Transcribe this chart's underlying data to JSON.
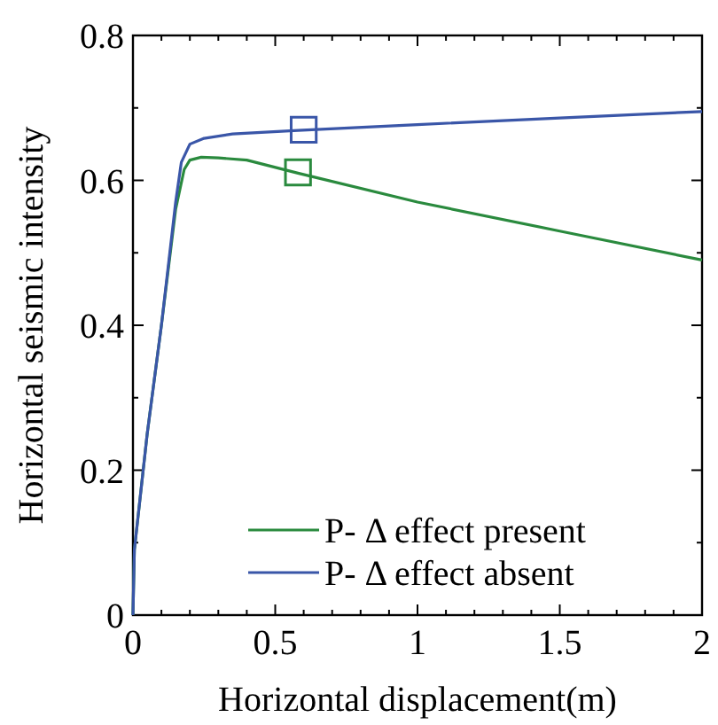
{
  "chart_data": {
    "type": "line",
    "xlabel": "Horizontal displacement(m)",
    "ylabel": "Horizontal seismic intensity",
    "xlim": [
      0,
      2
    ],
    "ylim": [
      0,
      0.8
    ],
    "xticks": [
      0,
      {
        "value": 0.1,
        "label": null
      },
      {
        "value": 0.2,
        "label": null
      },
      {
        "value": 0.3,
        "label": null
      },
      {
        "value": 0.4,
        "label": null
      },
      0.5,
      {
        "value": 0.6,
        "label": null
      },
      {
        "value": 0.7,
        "label": null
      },
      {
        "value": 0.8,
        "label": null
      },
      {
        "value": 0.9,
        "label": null
      },
      1,
      {
        "value": 1.1,
        "label": null
      },
      {
        "value": 1.2,
        "label": null
      },
      {
        "value": 1.3,
        "label": null
      },
      {
        "value": 1.4,
        "label": null
      },
      1.5,
      {
        "value": 1.6,
        "label": null
      },
      {
        "value": 1.7,
        "label": null
      },
      {
        "value": 1.8,
        "label": null
      },
      {
        "value": 1.9,
        "label": null
      },
      2
    ],
    "yticks": [
      0,
      {
        "value": 0.1,
        "label": null
      },
      0.2,
      {
        "value": 0.3,
        "label": null
      },
      0.4,
      {
        "value": 0.5,
        "label": null
      },
      0.6,
      {
        "value": 0.7,
        "label": null
      },
      0.8
    ],
    "grid": false,
    "legend": "bottom right",
    "line_style": "solid",
    "series": [
      {
        "name": "P- Δ effect present",
        "color": "#2a8a3e",
        "marker": "none",
        "x": [
          0,
          0.005,
          0.05,
          0.1,
          0.15,
          0.18,
          0.2,
          0.24,
          0.3,
          0.4,
          0.58,
          1,
          1.5,
          2
        ],
        "values": [
          0,
          0.09,
          0.25,
          0.4,
          0.56,
          0.615,
          0.628,
          0.632,
          0.631,
          0.628,
          0.61,
          0.57,
          0.53,
          0.49
        ]
      },
      {
        "name": "P- Δ effect absent",
        "color": "#3a56a8",
        "marker": "none",
        "x": [
          0,
          0.005,
          0.05,
          0.1,
          0.15,
          0.17,
          0.2,
          0.25,
          0.35,
          0.58,
          1,
          1.5,
          2
        ],
        "values": [
          0,
          0.09,
          0.25,
          0.4,
          0.57,
          0.625,
          0.65,
          0.658,
          0.664,
          0.669,
          0.677,
          0.686,
          0.695
        ]
      },
      {
        "type": "scatter",
        "color": "#2a8a3e",
        "marker": "square",
        "x": [
          0.58
        ],
        "values": [
          0.611
        ]
      },
      {
        "type": "scatter",
        "color": "#3a56a8",
        "marker": "square",
        "x": [
          0.6
        ],
        "values": [
          0.67
        ]
      }
    ]
  }
}
